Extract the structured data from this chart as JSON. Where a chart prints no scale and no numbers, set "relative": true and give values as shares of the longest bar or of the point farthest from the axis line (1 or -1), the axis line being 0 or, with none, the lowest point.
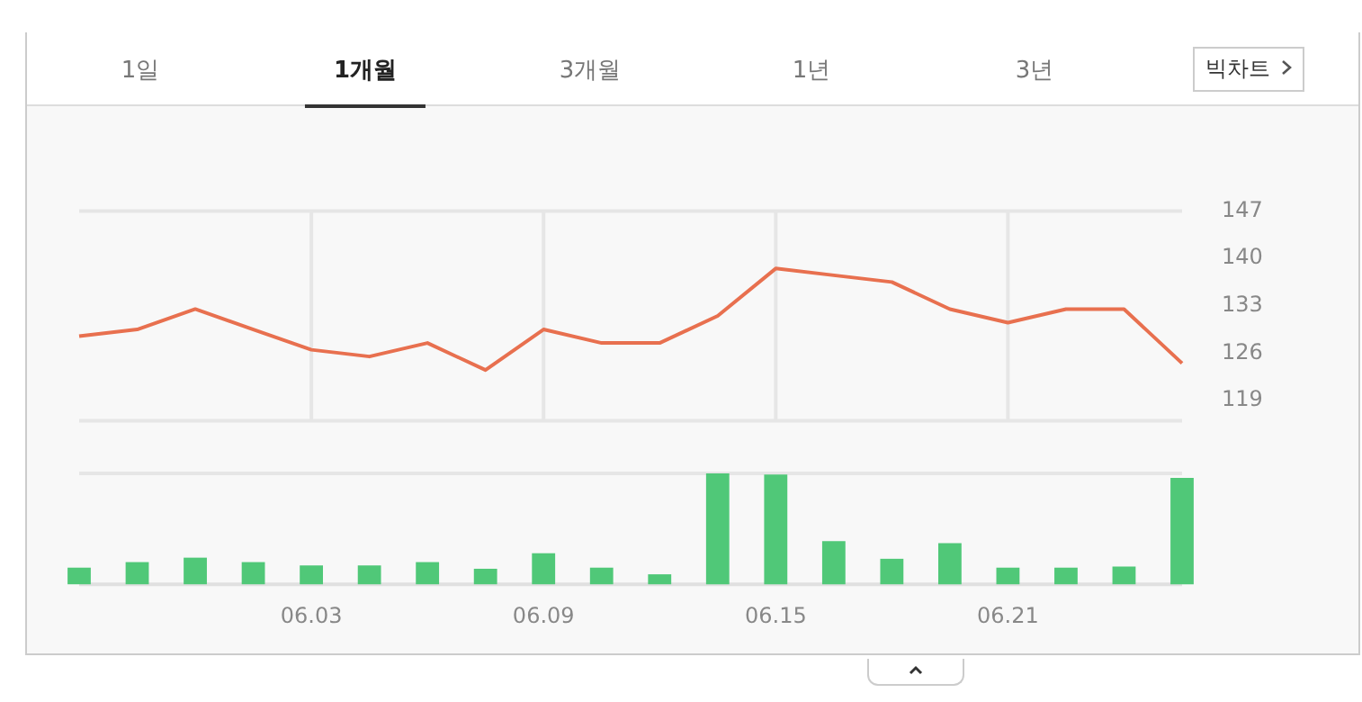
{
  "chart_data": [
    {
      "type": "line",
      "annotations": [
        "1일",
        "1개월",
        "3개월",
        "1년",
        "3년",
        "빅차트"
      ],
      "categories": [
        null,
        null,
        null,
        null,
        "06.03",
        null,
        null,
        null,
        "06.09",
        null,
        null,
        null,
        "06.15",
        null,
        null,
        null,
        "06.21",
        null,
        null,
        null
      ],
      "series": [
        {
          "color": "#e8704f",
          "values": [
            128.5,
            129.5,
            132.5,
            129.5,
            126.5,
            125.5,
            127.5,
            123.5,
            129.5,
            127.5,
            127.5,
            131.5,
            138.5,
            137.5,
            136.5,
            132.5,
            130.5,
            132.5,
            132.5,
            124.5
          ]
        }
      ],
      "ylim": [
        116,
        147
      ],
      "yticks": [
        119,
        126,
        133,
        140,
        147
      ],
      "grid": "x",
      "tick_labels": "y",
      "marker": "none",
      "line_style": "solid"
    },
    {
      "type": "bar",
      "relative": true,
      "tick_labels": "x",
      "categories": [
        null,
        null,
        null,
        null,
        "06.03",
        null,
        null,
        null,
        "06.09",
        null,
        null,
        null,
        "06.15",
        null,
        null,
        null,
        "06.21",
        null,
        null,
        null
      ],
      "series": [
        {
          "color": "#50c878",
          "values": [
            0.15,
            0.2,
            0.24,
            0.2,
            0.17,
            0.17,
            0.2,
            0.14,
            0.28,
            0.15,
            0.09,
            1,
            0.99,
            0.39,
            0.23,
            0.37,
            0.15,
            0.15,
            0.16,
            0.96
          ]
        }
      ]
    }
  ]
}
